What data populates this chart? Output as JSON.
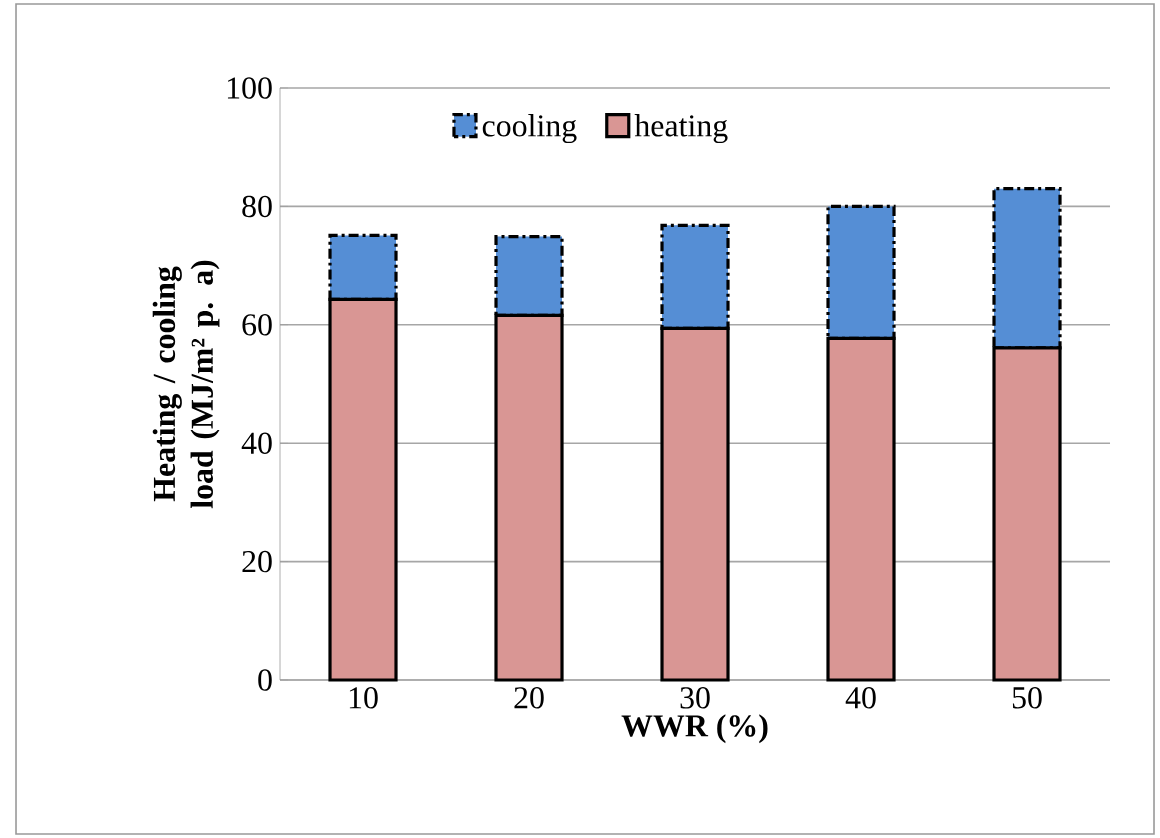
{
  "chart_data": {
    "type": "bar",
    "stacked": true,
    "xlabel": "WWR (%)",
    "ylabel": "Heating / cooling load (MJ/m² p. a)",
    "categories": [
      "10",
      "20",
      "30",
      "40",
      "50"
    ],
    "series": [
      {
        "name": "heating",
        "color": "#d99694",
        "line_style": "solid",
        "values": [
          64.3,
          61.6,
          59.4,
          57.7,
          56.1
        ]
      },
      {
        "name": "cooling",
        "color": "#558ed5",
        "line_style": "dashed",
        "values": [
          10.8,
          13.3,
          17.4,
          22.3,
          26.9
        ]
      }
    ],
    "ylim": [
      0,
      100
    ],
    "yticks": [
      0,
      20,
      40,
      60,
      80,
      100
    ],
    "grid": "y",
    "legend": "top left"
  }
}
